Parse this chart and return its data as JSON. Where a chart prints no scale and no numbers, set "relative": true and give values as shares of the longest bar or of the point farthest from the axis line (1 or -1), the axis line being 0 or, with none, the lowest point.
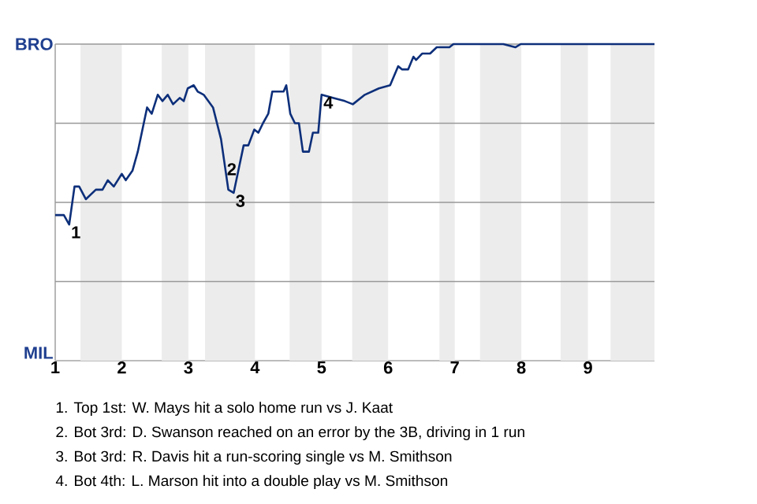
{
  "chart_data": {
    "type": "line",
    "relative": true,
    "x": [
      1,
      1.13,
      1.21,
      1.29,
      1.36,
      1.46,
      1.61,
      1.71,
      1.79,
      1.88,
      2,
      2.06,
      2.16,
      2.24,
      2.32,
      2.38,
      2.45,
      2.54,
      2.61,
      2.69,
      2.77,
      2.87,
      2.93,
      2.99,
      3.08,
      3.14,
      3.23,
      3.37,
      3.49,
      3.6,
      3.68,
      3.75,
      3.83,
      3.9,
      3.99,
      4.05,
      4.12,
      4.2,
      4.26,
      4.43,
      4.47,
      4.53,
      4.6,
      4.66,
      4.72,
      4.81,
      4.87,
      4.95,
      5,
      5.17,
      5.35,
      5.47,
      5.65,
      5.86,
      6.03,
      6.15,
      6.21,
      6.3,
      6.38,
      6.42,
      6.51,
      6.63,
      6.73,
      6.92,
      6.98,
      7.39,
      7.73,
      7.91,
      7.99,
      9.43,
      9.53,
      9.63,
      9.84,
      10
    ],
    "series": [
      {
        "color": "#0d2f7a",
        "values": [
          0.46,
          0.46,
          0.43,
          0.55,
          0.55,
          0.51,
          0.54,
          0.54,
          0.57,
          0.55,
          0.59,
          0.57,
          0.6,
          0.66,
          0.74,
          0.8,
          0.78,
          0.84,
          0.82,
          0.84,
          0.81,
          0.83,
          0.82,
          0.86,
          0.87,
          0.85,
          0.84,
          0.8,
          0.7,
          0.54,
          0.53,
          0.6,
          0.68,
          0.68,
          0.73,
          0.72,
          0.75,
          0.78,
          0.85,
          0.85,
          0.87,
          0.78,
          0.75,
          0.75,
          0.66,
          0.66,
          0.72,
          0.72,
          0.84,
          0.83,
          0.82,
          0.81,
          0.84,
          0.86,
          0.87,
          0.93,
          0.92,
          0.92,
          0.96,
          0.95,
          0.97,
          0.97,
          0.99,
          0.99,
          1,
          1,
          1,
          0.99,
          1,
          1,
          1,
          1,
          1,
          1
        ]
      }
    ],
    "xlim": [
      1,
      10
    ],
    "xticks": [
      1,
      2,
      3,
      4,
      5,
      6,
      7,
      8,
      9
    ],
    "marker": "none",
    "line_style": "solid",
    "ref_lines": [
      {
        "axis": "y",
        "value": 0.25,
        "color": "#999999"
      },
      {
        "axis": "y",
        "value": 0.5,
        "color": "#999999"
      },
      {
        "axis": "y",
        "value": 0.75,
        "color": "#999999"
      },
      {
        "axis": "y",
        "value": 1,
        "color": "#999999"
      }
    ],
    "bands": [
      {
        "axis": "x",
        "from": 1.38,
        "to": 2,
        "color": "#ececec"
      },
      {
        "axis": "x",
        "from": 2.6,
        "to": 3,
        "color": "#ececec"
      },
      {
        "axis": "x",
        "from": 3.25,
        "to": 4,
        "color": "#ececec"
      },
      {
        "axis": "x",
        "from": 4.52,
        "to": 5,
        "color": "#ececec"
      },
      {
        "axis": "x",
        "from": 5.46,
        "to": 6,
        "color": "#ececec"
      },
      {
        "axis": "x",
        "from": 6.77,
        "to": 7,
        "color": "#ececec"
      },
      {
        "axis": "x",
        "from": 7.38,
        "to": 8,
        "color": "#ececec"
      },
      {
        "axis": "x",
        "from": 8.59,
        "to": 9,
        "color": "#ececec"
      },
      {
        "axis": "x",
        "from": 9.34,
        "to": 10,
        "color": "#ececec"
      }
    ],
    "annotations": [
      "BRO",
      "MIL",
      {
        "text": "1",
        "x": 1.21,
        "y": 0.43
      },
      {
        "text": "2",
        "x": 3.55,
        "y": 0.63
      },
      {
        "text": "3",
        "x": 3.68,
        "y": 0.53
      },
      {
        "text": "4",
        "x": 5,
        "y": 0.84
      },
      "1. Top 1st: W. Mays hit a solo home run vs J. Kaat",
      "2. Bot 3rd: D. Swanson reached on an error by the 3B, driving in 1 run",
      "3. Bot 3rd: R. Davis hit a run-scoring single vs M. Smithson",
      "4. Bot 4th: L. Marson hit into a double play vs M. Smithson"
    ]
  }
}
